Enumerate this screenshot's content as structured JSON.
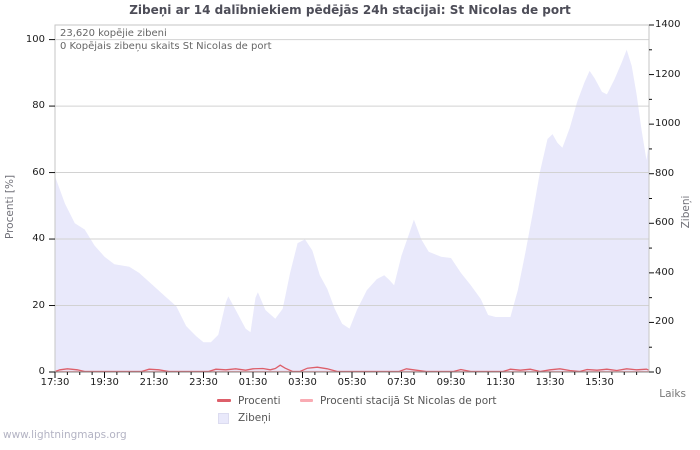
{
  "page": {
    "footer": "www.lightningmaps.org"
  },
  "chart_data": {
    "type": "area",
    "title": "Zibeņi ar 14 dalībniekiem pēdējās 24h stacijai: St Nicolas de port",
    "annotations": [
      "23,620 kopējie zibeni",
      "0 Kopējais zibeņu skaits St Nicolas de port"
    ],
    "xlabel": "Laiks",
    "ylabel_left": "Procenti   [%]",
    "ylabel_right": "Zibeņi",
    "x_ticks": [
      "17:30",
      "19:30",
      "21:30",
      "23:30",
      "01:30",
      "03:30",
      "05:30",
      "07:30",
      "09:30",
      "11:30",
      "13:30",
      "15:30"
    ],
    "x_range_hours": [
      0,
      24
    ],
    "y_left": {
      "min": 0,
      "max": 100,
      "ticks": [
        0,
        20,
        40,
        60,
        80,
        100
      ]
    },
    "y_right": {
      "min": 0,
      "max": 1400,
      "ticks": [
        0,
        200,
        400,
        600,
        800,
        1000,
        1200,
        1400
      ],
      "minor_step": 100
    },
    "grid": "horizontal-only",
    "colors": {
      "area": "#e9e9fb",
      "procenti": "#dd5f6a",
      "procenti_station": "#f9abb3",
      "grid": "#d2d2d2",
      "border": "#c6c6c6",
      "axis_bottom": "#858585",
      "tick": "#111111"
    },
    "legend": [
      {
        "label": "Procenti",
        "type": "line",
        "color": "#dd5f6a"
      },
      {
        "label": "Procenti stacijā St Nicolas de port",
        "type": "line",
        "color": "#f9abb3"
      },
      {
        "label": "Zibeņi",
        "type": "area",
        "color": "#e9e9fb"
      }
    ],
    "series": [
      {
        "name": "Zibeņi",
        "type": "area",
        "axis": "right",
        "color": "#e9e9fb",
        "points": [
          [
            0,
            790
          ],
          [
            0.4,
            680
          ],
          [
            0.8,
            600
          ],
          [
            1.2,
            575
          ],
          [
            1.6,
            510
          ],
          [
            2.0,
            465
          ],
          [
            2.4,
            435
          ],
          [
            3.0,
            425
          ],
          [
            3.4,
            400
          ],
          [
            3.9,
            355
          ],
          [
            4.4,
            310
          ],
          [
            4.9,
            265
          ],
          [
            5.3,
            185
          ],
          [
            5.7,
            145
          ],
          [
            6.0,
            120
          ],
          [
            6.3,
            120
          ],
          [
            6.6,
            150
          ],
          [
            6.9,
            280
          ],
          [
            7.0,
            305
          ],
          [
            7.3,
            250
          ],
          [
            7.7,
            175
          ],
          [
            7.9,
            160
          ],
          [
            8.1,
            300
          ],
          [
            8.2,
            322
          ],
          [
            8.5,
            250
          ],
          [
            8.9,
            215
          ],
          [
            9.2,
            255
          ],
          [
            9.5,
            400
          ],
          [
            9.8,
            520
          ],
          [
            10.1,
            535
          ],
          [
            10.4,
            490
          ],
          [
            10.7,
            390
          ],
          [
            11.0,
            335
          ],
          [
            11.3,
            255
          ],
          [
            11.6,
            195
          ],
          [
            11.9,
            175
          ],
          [
            12.2,
            250
          ],
          [
            12.6,
            330
          ],
          [
            13.0,
            375
          ],
          [
            13.3,
            390
          ],
          [
            13.5,
            372
          ],
          [
            13.7,
            350
          ],
          [
            14.0,
            470
          ],
          [
            14.3,
            555
          ],
          [
            14.5,
            615
          ],
          [
            14.8,
            535
          ],
          [
            15.1,
            485
          ],
          [
            15.6,
            465
          ],
          [
            16.0,
            460
          ],
          [
            16.4,
            400
          ],
          [
            16.8,
            350
          ],
          [
            17.2,
            295
          ],
          [
            17.5,
            230
          ],
          [
            17.8,
            222
          ],
          [
            18.4,
            222
          ],
          [
            18.7,
            330
          ],
          [
            19.0,
            480
          ],
          [
            19.3,
            640
          ],
          [
            19.6,
            810
          ],
          [
            19.9,
            940
          ],
          [
            20.1,
            960
          ],
          [
            20.3,
            925
          ],
          [
            20.5,
            905
          ],
          [
            20.8,
            985
          ],
          [
            21.1,
            1090
          ],
          [
            21.4,
            1170
          ],
          [
            21.6,
            1215
          ],
          [
            21.8,
            1185
          ],
          [
            22.1,
            1130
          ],
          [
            22.3,
            1120
          ],
          [
            22.6,
            1180
          ],
          [
            22.9,
            1250
          ],
          [
            23.1,
            1300
          ],
          [
            23.3,
            1235
          ],
          [
            23.5,
            1120
          ],
          [
            23.7,
            975
          ],
          [
            23.9,
            855
          ],
          [
            24,
            930
          ]
        ]
      },
      {
        "name": "Procenti",
        "type": "line",
        "axis": "left",
        "color": "#dd5f6a",
        "points": [
          [
            0,
            0
          ],
          [
            0.2,
            0.5
          ],
          [
            0.5,
            0.8
          ],
          [
            0.9,
            0.5
          ],
          [
            1.2,
            0
          ],
          [
            3.5,
            0
          ],
          [
            3.8,
            0.7
          ],
          [
            4.2,
            0.5
          ],
          [
            4.6,
            0
          ],
          [
            6.2,
            0
          ],
          [
            6.5,
            0.7
          ],
          [
            6.9,
            0.5
          ],
          [
            7.3,
            0.8
          ],
          [
            7.7,
            0.4
          ],
          [
            8.0,
            0.8
          ],
          [
            8.4,
            0.9
          ],
          [
            8.7,
            0.5
          ],
          [
            8.9,
            0.9
          ],
          [
            9.1,
            1.9
          ],
          [
            9.3,
            1.0
          ],
          [
            9.6,
            0
          ],
          [
            9.9,
            0
          ],
          [
            10.2,
            1.0
          ],
          [
            10.6,
            1.3
          ],
          [
            11.0,
            0.8
          ],
          [
            11.4,
            0
          ],
          [
            13.9,
            0
          ],
          [
            14.2,
            0.8
          ],
          [
            14.6,
            0.4
          ],
          [
            15.0,
            0
          ],
          [
            16.1,
            0
          ],
          [
            16.4,
            0.6
          ],
          [
            16.8,
            0
          ],
          [
            18.1,
            0
          ],
          [
            18.4,
            0.7
          ],
          [
            18.8,
            0.4
          ],
          [
            19.2,
            0.7
          ],
          [
            19.6,
            0
          ],
          [
            20.0,
            0.5
          ],
          [
            20.4,
            0.8
          ],
          [
            20.8,
            0.3
          ],
          [
            21.2,
            0
          ],
          [
            21.5,
            0.6
          ],
          [
            21.9,
            0.4
          ],
          [
            22.3,
            0.7
          ],
          [
            22.7,
            0.3
          ],
          [
            23.1,
            0.8
          ],
          [
            23.5,
            0.5
          ],
          [
            23.9,
            0.7
          ],
          [
            24,
            0.4
          ]
        ]
      },
      {
        "name": "Procenti stacijā St Nicolas de port",
        "type": "line",
        "axis": "left",
        "color": "#f9abb3",
        "points": [
          [
            0,
            0
          ],
          [
            24,
            0
          ]
        ]
      }
    ]
  }
}
